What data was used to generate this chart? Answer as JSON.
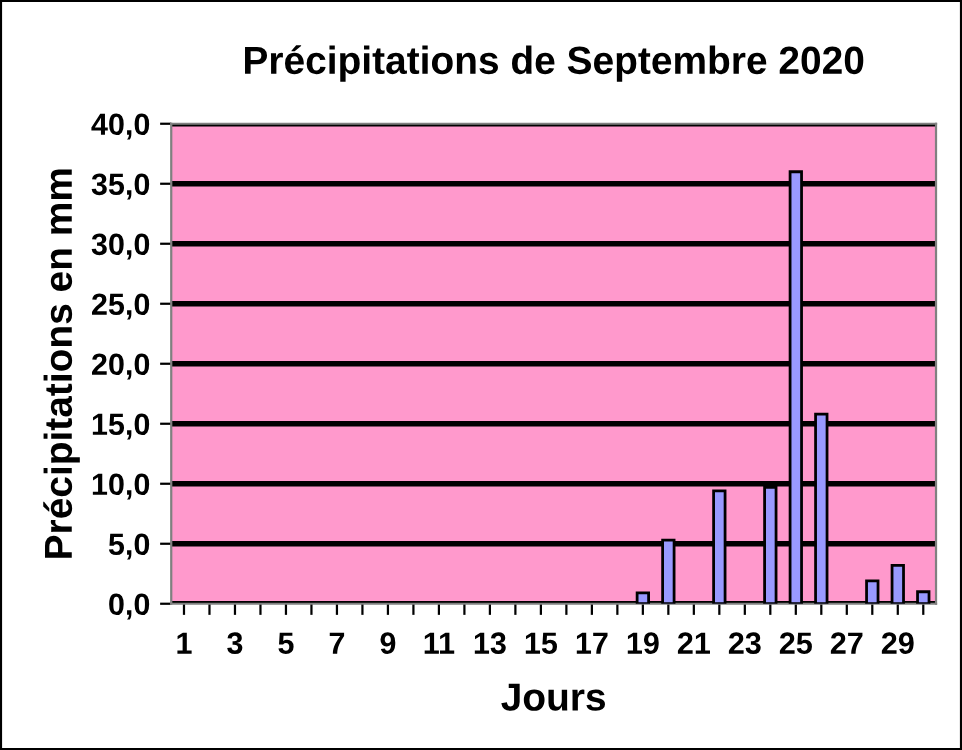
{
  "chart_data": {
    "type": "bar",
    "title": "Précipitations de Septembre 2020",
    "xlabel": "Jours",
    "ylabel": "Précipitations en mm",
    "categories": [
      "1",
      null,
      "3",
      null,
      "5",
      null,
      "7",
      null,
      "9",
      null,
      "11",
      null,
      "13",
      null,
      "15",
      null,
      "17",
      null,
      "19",
      null,
      "21",
      null,
      "23",
      null,
      "25",
      null,
      "27",
      null,
      "29",
      null
    ],
    "values": [
      0,
      0,
      0,
      0,
      0,
      0,
      0,
      0,
      0,
      0,
      0,
      0,
      0,
      0,
      0,
      0,
      0,
      0,
      0.9,
      5.3,
      0,
      9.4,
      0,
      9.7,
      36.0,
      15.8,
      0,
      1.9,
      3.2,
      1.0
    ],
    "color": "#9999ff",
    "ylim": [
      0,
      40
    ],
    "yticks": [
      {
        "value": 0,
        "label": "0,0"
      },
      {
        "value": 5,
        "label": "5,0"
      },
      {
        "value": 10,
        "label": "10,0"
      },
      {
        "value": 15,
        "label": "15,0"
      },
      {
        "value": 20,
        "label": "20,0"
      },
      {
        "value": 25,
        "label": "25,0"
      },
      {
        "value": 30,
        "label": "30,0"
      },
      {
        "value": 35,
        "label": "35,0"
      },
      {
        "value": 40,
        "label": "40,0"
      }
    ],
    "grid": "y"
  }
}
